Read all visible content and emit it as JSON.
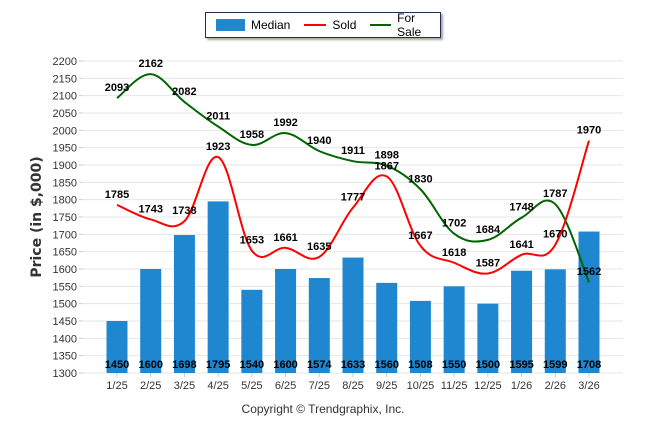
{
  "legend": {
    "items": [
      {
        "label": "Median",
        "kind": "bar",
        "color": "#1f87cf"
      },
      {
        "label": "Sold",
        "kind": "line",
        "color": "#ff0000"
      },
      {
        "label": "For Sale",
        "kind": "line",
        "color": "#006400"
      }
    ]
  },
  "copyright": "Copyright © Trendgraphix, Inc.",
  "chart_data": {
    "type": "bar",
    "title": "",
    "xlabel": "",
    "ylabel": "Price (in $,000)",
    "ylim": [
      1300,
      2200
    ],
    "ytick_step": 50,
    "grid": true,
    "legend_position": "top-center",
    "categories": [
      "1/25",
      "2/25",
      "3/25",
      "4/25",
      "5/25",
      "6/25",
      "7/25",
      "8/25",
      "9/25",
      "10/25",
      "11/25",
      "12/25",
      "1/26",
      "2/26",
      "3/26"
    ],
    "series": [
      {
        "name": "Median",
        "type": "bar",
        "color": "#1f87cf",
        "values": [
          1450,
          1600,
          1698,
          1795,
          1540,
          1600,
          1574,
          1633,
          1560,
          1508,
          1550,
          1500,
          1595,
          1599,
          1708
        ]
      },
      {
        "name": "Sold",
        "type": "line",
        "color": "#ff0000",
        "values": [
          1785,
          1743,
          1738,
          1923,
          1653,
          1661,
          1635,
          1777,
          1867,
          1667,
          1618,
          1587,
          1641,
          1670,
          1970
        ]
      },
      {
        "name": "For Sale",
        "type": "line",
        "color": "#006400",
        "values": [
          2093,
          2162,
          2082,
          2011,
          1958,
          1992,
          1940,
          1911,
          1898,
          1830,
          1702,
          1684,
          1748,
          1787,
          1562
        ]
      }
    ]
  }
}
